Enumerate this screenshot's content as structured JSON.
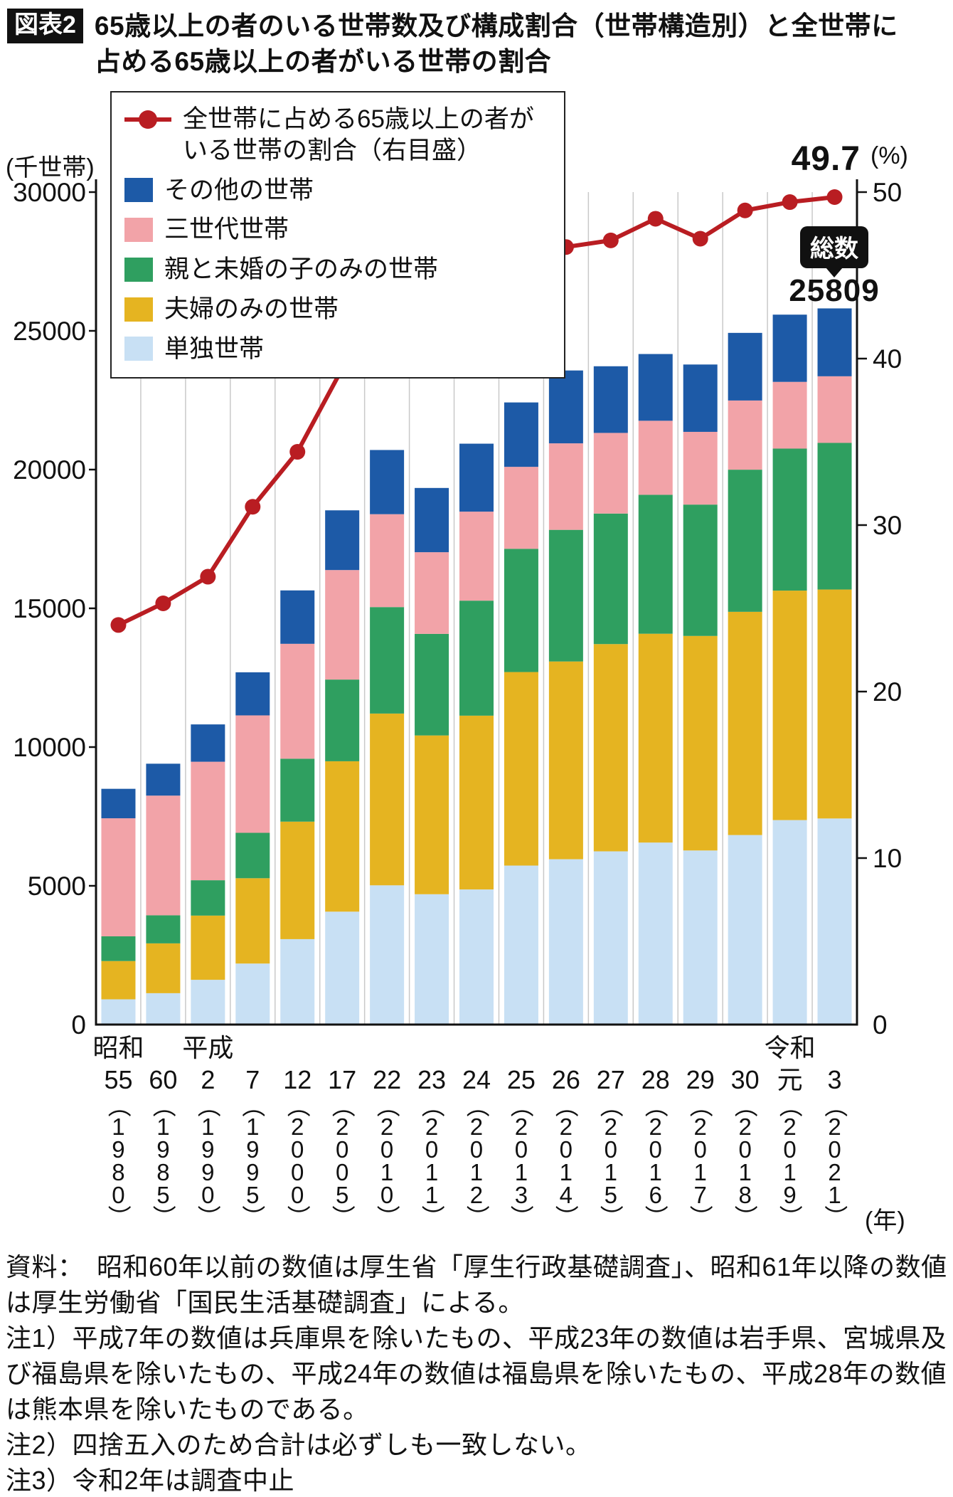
{
  "figure": {
    "tag": "図表2",
    "title_line1": "65歳以上の者のいる世帯数及び構成割合（世帯構造別）と全世帯に",
    "title_line2": "占める65歳以上の者がいる世帯の割合"
  },
  "axes": {
    "left_unit": "(千世帯)",
    "right_unit": "(%)",
    "x_unit": "(年)"
  },
  "annotations": {
    "last_rate": "49.7",
    "total_label": "総数",
    "total_value": "25809"
  },
  "legend": {
    "line_label_line1": "全世帯に占める65歳以上の者が",
    "line_label_line2": "いる世帯の割合（右目盛）",
    "items": [
      {
        "label": "その他の世帯",
        "color": "#1d5aa7"
      },
      {
        "label": "三世代世帯",
        "color": "#f2a3a8"
      },
      {
        "label": "親と未婚の子のみの世帯",
        "color": "#2f9f60"
      },
      {
        "label": "夫婦のみの世帯",
        "color": "#e5b421"
      },
      {
        "label": "単独世帯",
        "color": "#c8e0f4"
      }
    ]
  },
  "chart_data": {
    "type": "bar",
    "subtype": "stacked-bars-with-line-dual-axis",
    "title": "65歳以上の者のいる世帯数及び構成割合（世帯構造別）と全世帯に占める65歳以上の者がいる世帯の割合",
    "unit_bars": "千世帯",
    "unit_line": "%",
    "grid": "vertical-category-separators",
    "legend_position": "top-left-inside",
    "categories": [
      {
        "era": "昭和",
        "num": "55",
        "year": "1980"
      },
      {
        "era": "",
        "num": "60",
        "year": "1985"
      },
      {
        "era": "平成",
        "num": "2",
        "year": "1990"
      },
      {
        "era": "",
        "num": "7",
        "year": "1995"
      },
      {
        "era": "",
        "num": "12",
        "year": "2000"
      },
      {
        "era": "",
        "num": "17",
        "year": "2005"
      },
      {
        "era": "",
        "num": "22",
        "year": "2010"
      },
      {
        "era": "",
        "num": "23",
        "year": "2011"
      },
      {
        "era": "",
        "num": "24",
        "year": "2012"
      },
      {
        "era": "",
        "num": "25",
        "year": "2013"
      },
      {
        "era": "",
        "num": "26",
        "year": "2014"
      },
      {
        "era": "",
        "num": "27",
        "year": "2015"
      },
      {
        "era": "",
        "num": "28",
        "year": "2016"
      },
      {
        "era": "",
        "num": "29",
        "year": "2017"
      },
      {
        "era": "",
        "num": "30",
        "year": "2018"
      },
      {
        "era": "令和",
        "num": "元",
        "year": "2019"
      },
      {
        "era": "",
        "num": "3",
        "year": "2021"
      }
    ],
    "series": [
      {
        "name": "単独世帯",
        "color": "#c8e0f4",
        "values": [
          910,
          1131,
          1613,
          2199,
          3079,
          4069,
          5018,
          4697,
          4869,
          5730,
          5959,
          6243,
          6559,
          6274,
          6830,
          7369,
          7427
        ]
      },
      {
        "name": "夫婦のみの世帯",
        "color": "#e5b421",
        "values": [
          1379,
          1795,
          2314,
          3075,
          4234,
          5420,
          6190,
          5722,
          6263,
          6974,
          7126,
          7469,
          7526,
          7731,
          8045,
          8270,
          8251
        ]
      },
      {
        "name": "親と未婚の子のみの世帯",
        "color": "#2f9f60",
        "values": [
          891,
          1012,
          1275,
          1636,
          2268,
          2944,
          3837,
          3661,
          4145,
          4442,
          4744,
          4704,
          5007,
          4734,
          5122,
          5118,
          5284
        ]
      },
      {
        "name": "三世代世帯",
        "color": "#f2a3a8",
        "values": [
          4254,
          4313,
          4270,
          4232,
          4141,
          3947,
          3348,
          2943,
          3208,
          2953,
          3117,
          2906,
          2668,
          2621,
          2493,
          2404,
          2401
        ]
      },
      {
        "name": "その他の世帯",
        "color": "#1d5aa7",
        "values": [
          1062,
          1150,
          1345,
          1553,
          1924,
          2152,
          2313,
          2315,
          2449,
          2321,
          2626,
          2402,
          2405,
          2427,
          2437,
          2423,
          2446
        ]
      }
    ],
    "totals": [
      8495,
      9400,
      10816,
      12695,
      15647,
      18532,
      20705,
      19338,
      20934,
      22420,
      23572,
      23724,
      24165,
      23787,
      24927,
      25584,
      25809
    ],
    "line_series": {
      "name": "全世帯に占める65歳以上の者がいる世帯の割合（右目盛）",
      "color": "#b91d22",
      "values": [
        24.0,
        25.3,
        26.9,
        31.1,
        34.4,
        39.4,
        42.6,
        41.6,
        43.4,
        44.7,
        46.7,
        47.1,
        48.4,
        47.2,
        48.9,
        49.4,
        49.7
      ]
    },
    "left_axis": {
      "min": 0,
      "max": 30000,
      "ticks": [
        0,
        5000,
        10000,
        15000,
        20000,
        25000,
        30000
      ],
      "label": "(千世帯)"
    },
    "right_axis": {
      "min": 0,
      "max": 50,
      "ticks": [
        0,
        10,
        20,
        30,
        40,
        50
      ],
      "label": "(%)"
    }
  },
  "notes": {
    "source": "資料：　昭和60年以前の数値は厚生省「厚生行政基礎調査」、昭和61年以降の数値は厚生労働省「国民生活基礎調査」による。",
    "note1": "注1）平成7年の数値は兵庫県を除いたもの、平成23年の数値は岩手県、宮城県及び福島県を除いたもの、平成24年の数値は福島県を除いたもの、平成28年の数値は熊本県を除いたものである。",
    "note2": "注2）四捨五入のため合計は必ずしも一致しない。",
    "note3": "注3）令和2年は調査中止"
  }
}
